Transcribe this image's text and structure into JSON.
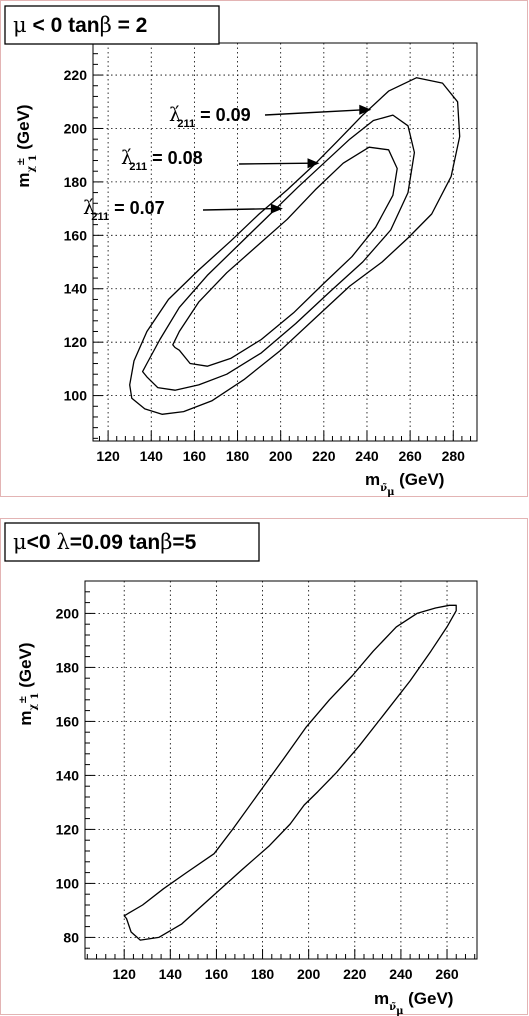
{
  "chart_data": [
    {
      "type": "line",
      "title": {
        "parts": [
          "μ",
          " < 0   tan",
          "β",
          " = 2"
        ]
      },
      "xlabel": {
        "main": "m",
        "sub": "ν̃",
        "subsub": "μ",
        "unit": " (GeV)"
      },
      "ylabel": {
        "main": "m",
        "sub": "χ",
        "sup": "±",
        "subsub": "1",
        "unit": " (GeV)"
      },
      "xlim": [
        113,
        291
      ],
      "ylim": [
        83,
        232
      ],
      "x_ticks": [
        120,
        140,
        160,
        180,
        200,
        220,
        240,
        260,
        280
      ],
      "y_ticks": [
        100,
        120,
        140,
        160,
        180,
        200,
        220
      ],
      "grid": true,
      "series": [
        {
          "name": "λ'211 = 0.09",
          "label": {
            "sym": "λ",
            "prime": "′",
            "sub": "211",
            "text": " = 0.09"
          },
          "x": [
            131,
            137,
            145,
            155,
            168,
            183,
            200,
            216,
            232,
            247,
            259,
            270,
            279,
            283,
            282,
            275,
            263,
            250,
            238,
            226,
            215,
            203,
            190,
            177,
            162,
            148,
            138,
            132,
            130,
            131
          ],
          "y": [
            99,
            95,
            93,
            94,
            98,
            106,
            117,
            129,
            141,
            150,
            159,
            168,
            182,
            197,
            210,
            217,
            219,
            214,
            205,
            195,
            186,
            177,
            168,
            158,
            147,
            136,
            124,
            113,
            104,
            99
          ]
        },
        {
          "name": "λ'211 = 0.08",
          "label": {
            "sym": "λ",
            "prime": "′",
            "sub": "211",
            "text": " = 0.08"
          },
          "x": [
            138,
            143,
            151,
            162,
            175,
            191,
            207,
            223,
            238,
            251,
            259,
            262,
            259,
            252,
            243,
            232,
            220,
            208,
            194,
            180,
            166,
            153,
            144,
            138,
            136,
            138
          ],
          "y": [
            107,
            103,
            102,
            104,
            108,
            116,
            127,
            139,
            150,
            162,
            176,
            191,
            201,
            205,
            203,
            196,
            187,
            178,
            167,
            156,
            145,
            133,
            121,
            112,
            109,
            107
          ]
        },
        {
          "name": "λ'211 = 0.07",
          "label": {
            "sym": "λ",
            "prime": "′",
            "sub": "211",
            "text": " = 0.07"
          },
          "x": [
            153,
            158,
            166,
            177,
            191,
            206,
            220,
            233,
            244,
            252,
            254,
            250,
            241,
            229,
            216,
            203,
            189,
            175,
            162,
            153,
            150,
            151,
            153
          ],
          "y": [
            117,
            112,
            111,
            114,
            121,
            131,
            142,
            152,
            163,
            175,
            185,
            192,
            193,
            187,
            177,
            166,
            156,
            146,
            135,
            124,
            119,
            118,
            117
          ]
        }
      ],
      "annotations": [
        {
          "series": "λ'211 = 0.09",
          "arrow_to": [
            242,
            207
          ]
        },
        {
          "series": "λ'211 = 0.08",
          "arrow_to": [
            218,
            187
          ]
        },
        {
          "series": "λ'211 = 0.07",
          "arrow_to": [
            201,
            170
          ]
        }
      ]
    },
    {
      "type": "line",
      "title": {
        "parts": [
          "μ",
          "<0  ",
          "λ",
          "=0.09  tan",
          "β",
          "=5"
        ]
      },
      "xlabel": {
        "main": "m",
        "sub": "ν̃",
        "subsub": "μ",
        "unit": " (GeV)"
      },
      "ylabel": {
        "main": "m",
        "sub": "χ",
        "sup": "±",
        "subsub": "1",
        "unit": " (GeV)"
      },
      "xlim": [
        103,
        273
      ],
      "ylim": [
        72,
        212
      ],
      "x_ticks": [
        120,
        140,
        160,
        180,
        200,
        220,
        240,
        260
      ],
      "y_ticks": [
        80,
        100,
        120,
        140,
        160,
        180,
        200
      ],
      "grid": true,
      "series": [
        {
          "name": "contour",
          "x": [
            121,
            123,
            127,
            135,
            145,
            158,
            171,
            183,
            192,
            198,
            204,
            212,
            222,
            233,
            244,
            253,
            260,
            264,
            264,
            261,
            255,
            247,
            238,
            228,
            219,
            209,
            199,
            189,
            178,
            167,
            159,
            147,
            137,
            128,
            122,
            120,
            121
          ],
          "y": [
            87,
            82,
            79,
            80,
            85,
            95,
            105,
            114,
            122,
            129,
            134,
            141,
            151,
            163,
            175,
            186,
            195,
            201,
            203,
            203,
            202,
            200,
            195,
            186,
            177,
            168,
            158,
            146,
            133,
            120,
            111,
            104,
            98,
            92,
            89,
            88,
            87
          ]
        }
      ],
      "annotations": []
    }
  ]
}
